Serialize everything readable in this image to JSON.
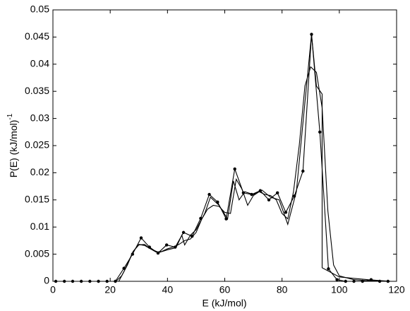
{
  "chart_data": {
    "type": "line",
    "xlabel": "E  (kJ/mol)",
    "ylabel": "P(E)  (kJ/mol)",
    "ylabel_sup": "-1",
    "xlim": [
      0,
      120
    ],
    "xticks": [
      0,
      20,
      40,
      60,
      80,
      100,
      120
    ],
    "ylim": [
      0,
      0.05
    ],
    "yticks": [
      0,
      0.005,
      0.01,
      0.015,
      0.02,
      0.025,
      0.03,
      0.035,
      0.04,
      0.045,
      0.05
    ],
    "grid": false,
    "series": [
      {
        "color": "#000000",
        "marker": true,
        "x": [
          1.0,
          4.0,
          6.9,
          9.9,
          12.9,
          15.9,
          18.9,
          21.8,
          24.8,
          27.8,
          30.8,
          33.7,
          36.7,
          39.7,
          42.7,
          45.6,
          48.6,
          51.6,
          54.6,
          57.5,
          60.5,
          63.5,
          66.5,
          69.4,
          72.4,
          75.4,
          78.4,
          81.3,
          84.3,
          87.3,
          90.3,
          93.2,
          96.2,
          99.2,
          102.2,
          105.1,
          108.1,
          111.1,
          114.1,
          117.0
        ],
        "values": [
          0,
          0,
          0,
          0,
          0,
          0,
          0,
          0,
          0.0024,
          0.005,
          0.008,
          0.0063,
          0.0052,
          0.0067,
          0.0063,
          0.009,
          0.0083,
          0.0116,
          0.016,
          0.0146,
          0.0115,
          0.0207,
          0.0163,
          0.016,
          0.0167,
          0.015,
          0.0163,
          0.0127,
          0.0157,
          0.0203,
          0.0455,
          0.0275,
          0.0023,
          0.0003,
          0,
          0,
          0,
          0.0003,
          0,
          0
        ]
      },
      {
        "color": "#000000",
        "marker": false,
        "x": [
          22,
          24,
          26,
          28,
          30,
          32,
          34,
          36,
          38,
          40,
          42,
          44,
          46,
          48,
          50,
          52,
          54,
          56,
          58,
          60,
          62,
          64,
          66,
          68,
          70,
          72,
          74,
          76,
          78,
          80,
          82,
          84,
          86,
          88,
          90,
          92,
          94,
          96,
          98,
          100,
          105,
          110,
          118
        ],
        "values": [
          0,
          0.001,
          0.003,
          0.0055,
          0.0067,
          0.0068,
          0.006,
          0.0054,
          0.0055,
          0.006,
          0.0063,
          0.0068,
          0.0075,
          0.0078,
          0.009,
          0.0115,
          0.0133,
          0.014,
          0.0138,
          0.0127,
          0.0125,
          0.0188,
          0.017,
          0.014,
          0.0158,
          0.0165,
          0.016,
          0.0158,
          0.015,
          0.0125,
          0.0115,
          0.0165,
          0.025,
          0.036,
          0.0395,
          0.0385,
          0.032,
          0.013,
          0.003,
          0.001,
          0.0003,
          0.0001,
          0
        ]
      },
      {
        "color": "#000000",
        "marker": false,
        "x": [
          23,
          25,
          28,
          30,
          32,
          34,
          37,
          40,
          43,
          45,
          46,
          48,
          50,
          53,
          55,
          58,
          61,
          63,
          65,
          67,
          70,
          73,
          76,
          79,
          82,
          85,
          88,
          90.3,
          92,
          94,
          94,
          100,
          110,
          118
        ],
        "values": [
          0,
          0.002,
          0.0055,
          0.0068,
          0.0066,
          0.006,
          0.0053,
          0.0058,
          0.0062,
          0.0085,
          0.0067,
          0.0085,
          0.0095,
          0.0125,
          0.0155,
          0.014,
          0.0115,
          0.0185,
          0.015,
          0.0165,
          0.016,
          0.0168,
          0.0155,
          0.015,
          0.0105,
          0.0165,
          0.033,
          0.0455,
          0.036,
          0.0345,
          0.0025,
          0.0008,
          0.0003,
          0
        ]
      }
    ]
  }
}
